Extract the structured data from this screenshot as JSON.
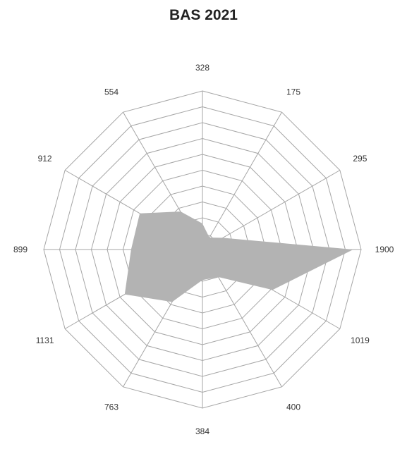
{
  "chart_data": {
    "type": "radar",
    "title": "BAS 2021",
    "categories": [
      "328",
      "175",
      "295",
      "1900",
      "1019",
      "400",
      "384",
      "763",
      "1131",
      "899",
      "912",
      "554"
    ],
    "series": [
      {
        "values": [
          328,
          175,
          295,
          1900,
          1019,
          400,
          384,
          763,
          1131,
          899,
          912,
          554
        ]
      }
    ],
    "rlim": [
      0,
      2000
    ],
    "grid": true,
    "colors": {
      "fill": "#b3b3b3",
      "grid": "#a6a6a6"
    }
  }
}
